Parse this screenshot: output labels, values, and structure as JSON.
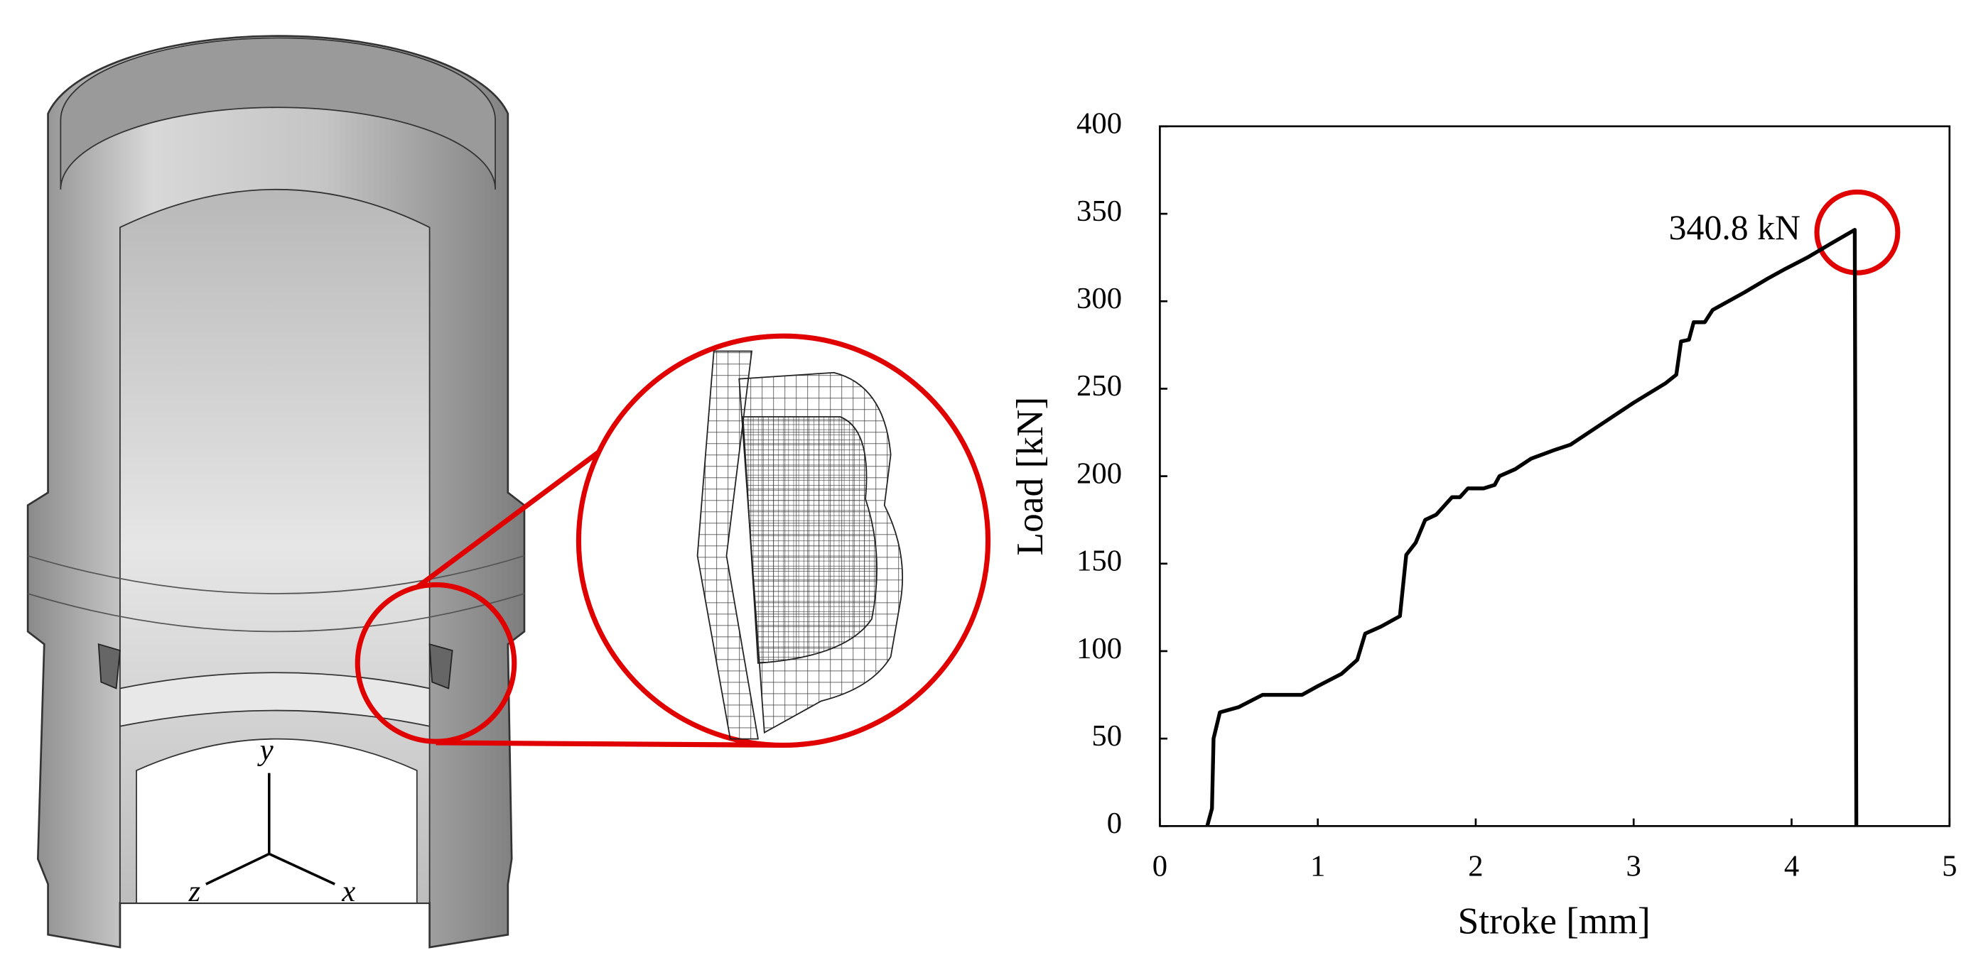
{
  "chart_data": {
    "type": "line",
    "xlabel": "Stroke [mm]",
    "ylabel": "Load [kN]",
    "annotation": "340.8 kN",
    "xlim": [
      0,
      5
    ],
    "xticks": [
      0,
      1,
      2,
      3,
      4,
      5
    ],
    "ylim": [
      0,
      400
    ],
    "yticks": [
      0,
      50,
      100,
      150,
      200,
      250,
      300,
      350,
      400
    ],
    "series": [
      {
        "color": "#000000",
        "x": [
          0.3,
          0.33,
          0.34,
          0.38,
          0.5,
          0.65,
          0.9,
          1.0,
          1.15,
          1.25,
          1.3,
          1.4,
          1.52,
          1.56,
          1.62,
          1.68,
          1.75,
          1.85,
          1.9,
          1.95,
          2.05,
          2.12,
          2.15,
          2.25,
          2.35,
          2.5,
          2.6,
          2.8,
          3.0,
          3.2,
          3.27,
          3.3,
          3.35,
          3.38,
          3.45,
          3.5,
          3.7,
          3.85,
          3.95,
          4.1,
          4.25,
          4.4,
          4.41
        ],
        "values": [
          0,
          10,
          50,
          65,
          68,
          75,
          75,
          80,
          87,
          95,
          110,
          114,
          120,
          155,
          162,
          175,
          178,
          188,
          188,
          193,
          193,
          195,
          200,
          204,
          210,
          215,
          218,
          230,
          242,
          253,
          258,
          277,
          278,
          288,
          288,
          295,
          305,
          313,
          318,
          325,
          333,
          340.8,
          0
        ]
      }
    ]
  },
  "figure": {
    "axis_labels": [
      "y",
      "z",
      "x"
    ]
  }
}
